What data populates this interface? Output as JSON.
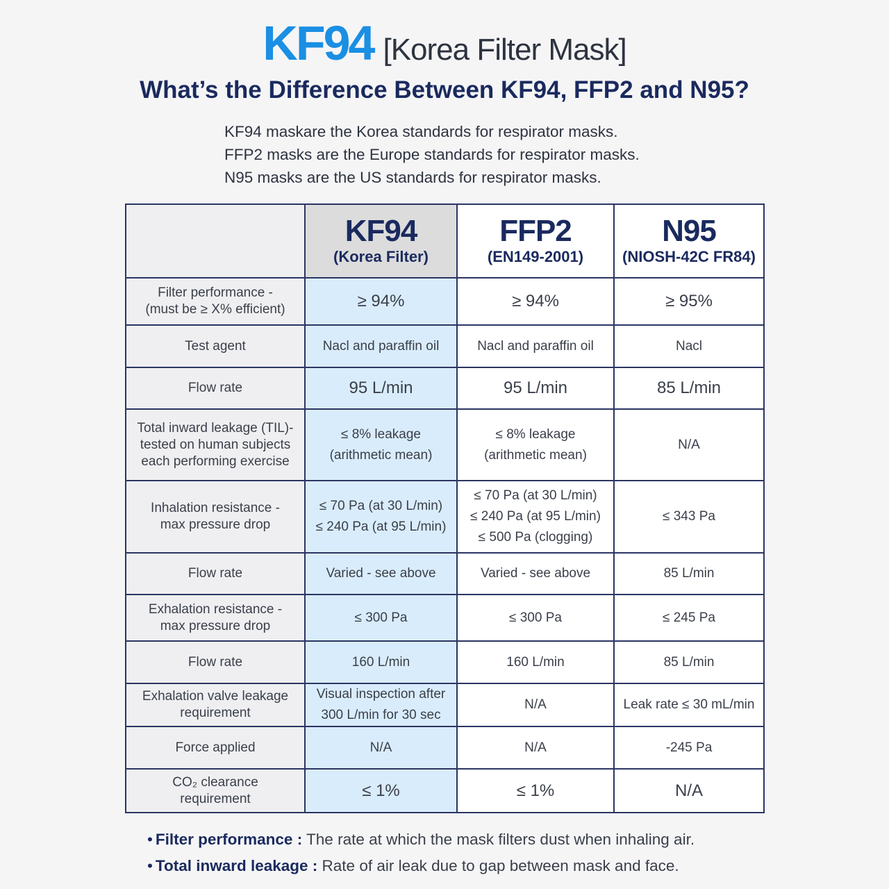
{
  "header": {
    "brand": "KF94",
    "brand_sub": "[Korea Filter Mask]",
    "headline": "What’s the Difference Between KF94, FFP2 and N95?",
    "intro": [
      "KF94 maskare the Korea standards for respirator masks.",
      "FFP2 masks are the Europe standards for respirator masks.",
      "N95 masks are the US standards for respirator masks."
    ]
  },
  "table": {
    "columns": [
      {
        "name": "KF94",
        "sub": "(Korea Filter)"
      },
      {
        "name": "FFP2",
        "sub": "(EN149-2001)"
      },
      {
        "name": "N95",
        "sub": "(NIOSH-42C FR84)"
      }
    ],
    "rows": [
      {
        "label": [
          "Filter performance -",
          "(must be ≥ X% efficient)"
        ],
        "cells": [
          [
            "≥ 94%"
          ],
          [
            "≥ 94%"
          ],
          [
            "≥ 95%"
          ]
        ]
      },
      {
        "label": [
          "Test agent"
        ],
        "cells": [
          [
            "Nacl and paraffin oil"
          ],
          [
            "Nacl and paraffin oil"
          ],
          [
            "Nacl"
          ]
        ]
      },
      {
        "label": [
          "Flow rate"
        ],
        "cells": [
          [
            "95 L/min"
          ],
          [
            "95 L/min"
          ],
          [
            "85 L/min"
          ]
        ]
      },
      {
        "label": [
          "Total inward leakage (TIL)-",
          "tested on human subjects",
          "each performing exercise"
        ],
        "cells": [
          [
            "≤ 8% leakage",
            "(arithmetic mean)"
          ],
          [
            "≤ 8% leakage",
            "(arithmetic mean)"
          ],
          [
            "N/A"
          ]
        ]
      },
      {
        "label": [
          "Inhalation resistance -",
          "max pressure drop"
        ],
        "cells": [
          [
            "≤ 70 Pa (at 30 L/min)",
            "≤ 240 Pa (at 95 L/min)"
          ],
          [
            "≤ 70 Pa (at 30 L/min)",
            "≤ 240 Pa (at 95 L/min)",
            "≤ 500 Pa (clogging)"
          ],
          [
            "≤ 343 Pa"
          ]
        ]
      },
      {
        "label": [
          "Flow rate"
        ],
        "cells": [
          [
            "Varied - see above"
          ],
          [
            "Varied - see above"
          ],
          [
            "85 L/min"
          ]
        ]
      },
      {
        "label": [
          "Exhalation resistance -",
          "max pressure drop"
        ],
        "cells": [
          [
            "≤ 300 Pa"
          ],
          [
            "≤ 300 Pa"
          ],
          [
            "≤ 245 Pa"
          ]
        ]
      },
      {
        "label": [
          "Flow rate"
        ],
        "cells": [
          [
            "160 L/min"
          ],
          [
            "160 L/min"
          ],
          [
            "85 L/min"
          ]
        ]
      },
      {
        "label": [
          "Exhalation valve leakage",
          "requirement"
        ],
        "cells": [
          [
            "Visual inspection after",
            "300 L/min for 30 sec"
          ],
          [
            "N/A"
          ],
          [
            "Leak rate ≤ 30 mL/min"
          ]
        ]
      },
      {
        "label": [
          "Force applied"
        ],
        "cells": [
          [
            "N/A"
          ],
          [
            "N/A"
          ],
          [
            "-245 Pa"
          ]
        ]
      },
      {
        "label": [
          "CO₂ clearance",
          "requirement"
        ],
        "cells": [
          [
            "≤ 1%"
          ],
          [
            "≤ 1%"
          ],
          [
            "N/A"
          ]
        ]
      }
    ]
  },
  "notes": [
    {
      "term": "Filter performance :",
      "text": " The rate at which the mask filters dust when inhaling air."
    },
    {
      "term": "Total inward leakage :",
      "text": " Rate of air leak due to gap between mask and face."
    }
  ],
  "colors": {
    "brand_blue": "#1a8fe3",
    "navy": "#1a2a5e",
    "kf94_column_bg": "#d9ecfb",
    "label_column_bg": "#efeff1"
  }
}
